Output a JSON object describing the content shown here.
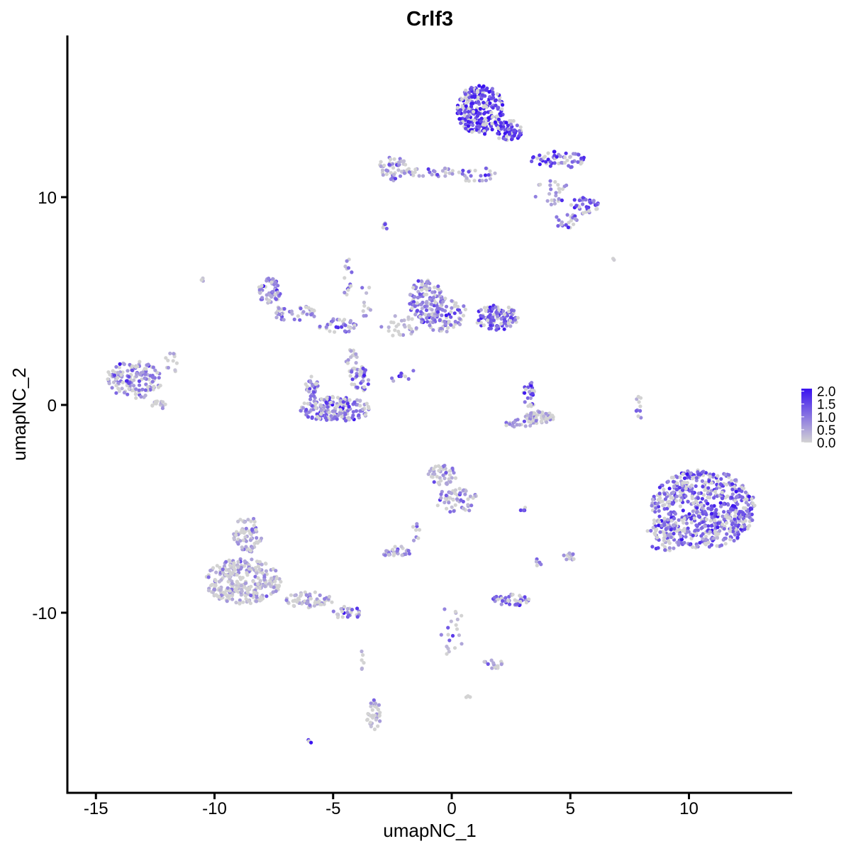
{
  "chart_data": {
    "type": "scatter",
    "title": "Crlf3",
    "xlabel": "umapNC_1",
    "ylabel": "umapNC_2",
    "xlim": [
      -16.5,
      14.5
    ],
    "ylim": [
      -18.5,
      17.5
    ],
    "x_ticks": [
      -15,
      -10,
      -5,
      0,
      5,
      10
    ],
    "y_ticks": [
      -10,
      0,
      10
    ],
    "x_tick_labels": [
      "-15",
      "-10",
      "-5",
      "0",
      "5",
      "10"
    ],
    "y_tick_labels": [
      "-10",
      "0",
      "10"
    ],
    "grid": false,
    "legend_position": "right",
    "color_scale": {
      "low_color": "#d3d3d3",
      "high_color": "#3a12f0",
      "min": 0.0,
      "max": 2.1,
      "ticks": [
        0.0,
        0.5,
        1.0,
        1.5,
        2.0
      ],
      "tick_labels": [
        "0.0",
        "0.5",
        "1.0",
        "1.5",
        "2.0"
      ]
    },
    "clusters": [
      {
        "cx": 1.2,
        "cy": 14.2,
        "rx": 1.0,
        "ry": 1.2,
        "n": 260,
        "expr": 1.6
      },
      {
        "cx": 2.4,
        "cy": 13.2,
        "rx": 0.6,
        "ry": 0.5,
        "n": 70,
        "expr": 1.7
      },
      {
        "cx": 4.5,
        "cy": 11.8,
        "rx": 1.2,
        "ry": 0.4,
        "n": 55,
        "expr": 1.3
      },
      {
        "cx": 5.6,
        "cy": 9.6,
        "rx": 0.6,
        "ry": 0.4,
        "n": 35,
        "expr": 1.3
      },
      {
        "cx": 4.8,
        "cy": 8.9,
        "rx": 0.5,
        "ry": 0.4,
        "n": 20,
        "expr": 0.8
      },
      {
        "cx": 4.2,
        "cy": 10.2,
        "rx": 0.9,
        "ry": 0.6,
        "n": 25,
        "expr": 0.6
      },
      {
        "cx": -2.5,
        "cy": 11.4,
        "rx": 0.6,
        "ry": 0.6,
        "n": 45,
        "expr": 0.5
      },
      {
        "cx": -1.0,
        "cy": 11.2,
        "rx": 1.1,
        "ry": 0.25,
        "n": 30,
        "expr": 0.7
      },
      {
        "cx": 1.0,
        "cy": 11.1,
        "rx": 0.9,
        "ry": 0.35,
        "n": 25,
        "expr": 0.8
      },
      {
        "cx": -2.8,
        "cy": 8.6,
        "rx": 0.2,
        "ry": 0.15,
        "n": 6,
        "expr": 1.2
      },
      {
        "cx": -7.7,
        "cy": 5.5,
        "rx": 0.5,
        "ry": 0.6,
        "n": 55,
        "expr": 0.9
      },
      {
        "cx": -6.6,
        "cy": 4.4,
        "rx": 1.0,
        "ry": 0.45,
        "n": 40,
        "expr": 0.8
      },
      {
        "cx": -4.8,
        "cy": 3.8,
        "rx": 0.8,
        "ry": 0.35,
        "n": 35,
        "expr": 1.0
      },
      {
        "cx": -4.4,
        "cy": 6.0,
        "rx": 0.2,
        "ry": 1.2,
        "n": 14,
        "expr": 0.8
      },
      {
        "cx": -3.6,
        "cy": 5.2,
        "rx": 0.3,
        "ry": 1.0,
        "n": 10,
        "expr": 0.3
      },
      {
        "cx": -4.2,
        "cy": 2.2,
        "rx": 0.25,
        "ry": 0.7,
        "n": 18,
        "expr": 0.1
      },
      {
        "cx": -4.9,
        "cy": -0.2,
        "rx": 1.5,
        "ry": 0.6,
        "n": 180,
        "expr": 1.1
      },
      {
        "cx": -3.9,
        "cy": 1.2,
        "rx": 0.4,
        "ry": 0.7,
        "n": 35,
        "expr": 1.0
      },
      {
        "cx": -5.9,
        "cy": 0.8,
        "rx": 0.3,
        "ry": 0.6,
        "n": 30,
        "expr": 1.0
      },
      {
        "cx": -1.1,
        "cy": 5.0,
        "rx": 0.7,
        "ry": 1.1,
        "n": 110,
        "expr": 1.0
      },
      {
        "cx": -0.4,
        "cy": 4.4,
        "rx": 1.0,
        "ry": 0.9,
        "n": 90,
        "expr": 0.9
      },
      {
        "cx": 1.9,
        "cy": 4.2,
        "rx": 0.9,
        "ry": 0.6,
        "n": 110,
        "expr": 1.3
      },
      {
        "cx": -2.2,
        "cy": 3.8,
        "rx": 0.8,
        "ry": 0.5,
        "n": 30,
        "expr": 0.3
      },
      {
        "cx": -2.1,
        "cy": 1.4,
        "rx": 0.7,
        "ry": 0.4,
        "n": 10,
        "expr": 1.3
      },
      {
        "cx": 3.3,
        "cy": 0.6,
        "rx": 0.3,
        "ry": 0.7,
        "n": 28,
        "expr": 1.1
      },
      {
        "cx": 3.7,
        "cy": -0.6,
        "rx": 0.6,
        "ry": 0.3,
        "n": 60,
        "expr": 0.3
      },
      {
        "cx": 2.8,
        "cy": -0.9,
        "rx": 0.6,
        "ry": 0.2,
        "n": 20,
        "expr": 0.7
      },
      {
        "cx": 7.9,
        "cy": -0.1,
        "rx": 0.15,
        "ry": 0.6,
        "n": 10,
        "expr": 0.8
      },
      {
        "cx": -13.4,
        "cy": 1.2,
        "rx": 1.2,
        "ry": 0.9,
        "n": 150,
        "expr": 0.9
      },
      {
        "cx": -12.4,
        "cy": 0.0,
        "rx": 0.4,
        "ry": 0.2,
        "n": 15,
        "expr": 0.2
      },
      {
        "cx": -11.8,
        "cy": 2.0,
        "rx": 0.3,
        "ry": 0.6,
        "n": 12,
        "expr": 0.7
      },
      {
        "cx": 10.6,
        "cy": -5.0,
        "rx": 2.2,
        "ry": 1.9,
        "n": 620,
        "expr": 1.2
      },
      {
        "cx": 9.0,
        "cy": -6.3,
        "rx": 0.8,
        "ry": 0.8,
        "n": 60,
        "expr": 1.0
      },
      {
        "cx": -8.8,
        "cy": -8.5,
        "rx": 1.6,
        "ry": 1.1,
        "n": 300,
        "expr": 0.35
      },
      {
        "cx": -8.6,
        "cy": -6.2,
        "rx": 0.6,
        "ry": 0.9,
        "n": 70,
        "expr": 0.45
      },
      {
        "cx": -6.0,
        "cy": -9.4,
        "rx": 1.0,
        "ry": 0.4,
        "n": 60,
        "expr": 0.4
      },
      {
        "cx": -4.4,
        "cy": -10.0,
        "rx": 0.6,
        "ry": 0.3,
        "n": 25,
        "expr": 0.6
      },
      {
        "cx": -0.4,
        "cy": -3.4,
        "rx": 0.6,
        "ry": 0.5,
        "n": 45,
        "expr": 0.5
      },
      {
        "cx": 0.2,
        "cy": -4.6,
        "rx": 0.9,
        "ry": 0.6,
        "n": 55,
        "expr": 0.6
      },
      {
        "cx": -2.3,
        "cy": -7.1,
        "rx": 0.6,
        "ry": 0.3,
        "n": 30,
        "expr": 0.6
      },
      {
        "cx": -1.6,
        "cy": -6.1,
        "rx": 0.3,
        "ry": 0.5,
        "n": 8,
        "expr": 0.8
      },
      {
        "cx": 2.5,
        "cy": -9.4,
        "rx": 0.8,
        "ry": 0.3,
        "n": 45,
        "expr": 1.0
      },
      {
        "cx": 0.0,
        "cy": -10.8,
        "rx": 0.5,
        "ry": 1.3,
        "n": 20,
        "expr": 0.5
      },
      {
        "cx": 1.7,
        "cy": -12.5,
        "rx": 0.5,
        "ry": 0.25,
        "n": 15,
        "expr": 0.5
      },
      {
        "cx": -3.3,
        "cy": -14.9,
        "rx": 0.3,
        "ry": 0.8,
        "n": 35,
        "expr": 0.2
      },
      {
        "cx": -3.8,
        "cy": -12.2,
        "rx": 0.1,
        "ry": 0.6,
        "n": 6,
        "expr": 0.2
      },
      {
        "cx": 5.0,
        "cy": -7.3,
        "rx": 0.3,
        "ry": 0.2,
        "n": 12,
        "expr": 0.5
      },
      {
        "cx": 3.6,
        "cy": -7.6,
        "rx": 0.2,
        "ry": 0.2,
        "n": 5,
        "expr": 0.8
      },
      {
        "cx": 3.0,
        "cy": -5.0,
        "rx": 0.15,
        "ry": 0.1,
        "n": 4,
        "expr": 1.4
      },
      {
        "cx": -6.0,
        "cy": -16.2,
        "rx": 0.1,
        "ry": 0.1,
        "n": 3,
        "expr": 1.9
      },
      {
        "cx": 0.7,
        "cy": -14.0,
        "rx": 0.15,
        "ry": 0.1,
        "n": 4,
        "expr": 0.1
      },
      {
        "cx": -10.5,
        "cy": 6.0,
        "rx": 0.1,
        "ry": 0.1,
        "n": 3,
        "expr": 0.1
      },
      {
        "cx": 6.8,
        "cy": 7.0,
        "rx": 0.05,
        "ry": 0.05,
        "n": 2,
        "expr": 0.1
      }
    ]
  }
}
